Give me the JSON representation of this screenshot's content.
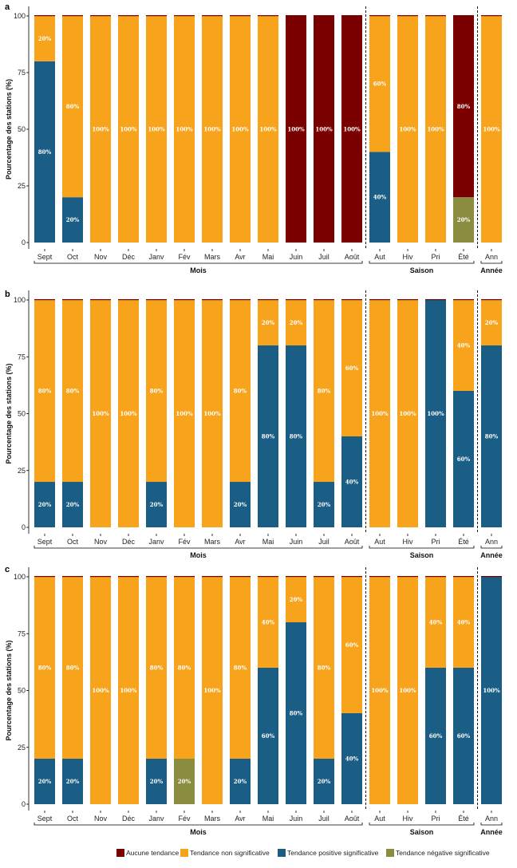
{
  "chart_data": [
    {
      "type": "bar",
      "stacked": true,
      "panel": "a",
      "ylabel": "Pourcentage des stations (%)",
      "yticks": [
        0,
        25,
        50,
        75,
        100
      ],
      "ylim": [
        0,
        100
      ],
      "categories": [
        "Sept",
        "Oct",
        "Nov",
        "Déc",
        "Janv",
        "Fév",
        "Mars",
        "Avr",
        "Mai",
        "Juin",
        "Juil",
        "Août",
        "Aut",
        "Hiv",
        "Pri",
        "Été",
        "Ann"
      ],
      "series": [
        {
          "name": "Tendance négative significative",
          "values": [
            0,
            0,
            0,
            0,
            0,
            0,
            0,
            0,
            0,
            0,
            0,
            0,
            0,
            0,
            0,
            20,
            0
          ]
        },
        {
          "name": "Tendance positive significative",
          "values": [
            80,
            20,
            0,
            0,
            0,
            0,
            0,
            0,
            0,
            0,
            0,
            0,
            40,
            0,
            0,
            0,
            0
          ]
        },
        {
          "name": "Tendance non significative",
          "values": [
            20,
            80,
            100,
            100,
            100,
            100,
            100,
            100,
            100,
            0,
            0,
            0,
            60,
            100,
            100,
            0,
            100
          ]
        },
        {
          "name": "Aucune tendance",
          "values": [
            0,
            0,
            0,
            0,
            0,
            0,
            0,
            0,
            0,
            100,
            100,
            100,
            0,
            0,
            0,
            80,
            0
          ]
        }
      ],
      "groups": [
        {
          "label": "Mois",
          "from": 0,
          "to": 11
        },
        {
          "label": "Saison",
          "from": 12,
          "to": 15
        },
        {
          "label": "Année",
          "from": 16,
          "to": 16
        }
      ]
    },
    {
      "type": "bar",
      "stacked": true,
      "panel": "b",
      "ylabel": "Pourcentage des stations (%)",
      "yticks": [
        0,
        25,
        50,
        75,
        100
      ],
      "ylim": [
        0,
        100
      ],
      "categories": [
        "Sept",
        "Oct",
        "Nov",
        "Déc",
        "Janv",
        "Fév",
        "Mars",
        "Avr",
        "Mai",
        "Juin",
        "Juil",
        "Août",
        "Aut",
        "Hiv",
        "Pri",
        "Été",
        "Ann"
      ],
      "series": [
        {
          "name": "Tendance négative significative",
          "values": [
            0,
            0,
            0,
            0,
            0,
            0,
            0,
            0,
            0,
            0,
            0,
            0,
            0,
            0,
            0,
            0,
            0
          ]
        },
        {
          "name": "Tendance positive significative",
          "values": [
            20,
            20,
            0,
            0,
            20,
            0,
            0,
            20,
            80,
            80,
            20,
            40,
            0,
            0,
            100,
            60,
            80
          ]
        },
        {
          "name": "Tendance non significative",
          "values": [
            80,
            80,
            100,
            100,
            80,
            100,
            100,
            80,
            20,
            20,
            80,
            60,
            100,
            100,
            0,
            40,
            20
          ]
        },
        {
          "name": "Aucune tendance",
          "values": [
            0,
            0,
            0,
            0,
            0,
            0,
            0,
            0,
            0,
            0,
            0,
            0,
            0,
            0,
            0,
            0,
            0
          ]
        }
      ],
      "groups": [
        {
          "label": "Mois",
          "from": 0,
          "to": 11
        },
        {
          "label": "Saison",
          "from": 12,
          "to": 15
        },
        {
          "label": "Année",
          "from": 16,
          "to": 16
        }
      ]
    },
    {
      "type": "bar",
      "stacked": true,
      "panel": "c",
      "ylabel": "Pourcentage des stations (%)",
      "yticks": [
        0,
        25,
        50,
        75,
        100
      ],
      "ylim": [
        0,
        100
      ],
      "categories": [
        "Sept",
        "Oct",
        "Nov",
        "Déc",
        "Janv",
        "Fév",
        "Mars",
        "Avr",
        "Mai",
        "Juin",
        "Juil",
        "Août",
        "Aut",
        "Hiv",
        "Pri",
        "Été",
        "Ann"
      ],
      "series": [
        {
          "name": "Tendance négative significative",
          "values": [
            0,
            0,
            0,
            0,
            0,
            20,
            0,
            0,
            0,
            0,
            0,
            0,
            0,
            0,
            0,
            0,
            0
          ]
        },
        {
          "name": "Tendance positive significative",
          "values": [
            20,
            20,
            0,
            0,
            20,
            0,
            0,
            20,
            60,
            80,
            20,
            40,
            0,
            0,
            60,
            60,
            100
          ]
        },
        {
          "name": "Tendance non significative",
          "values": [
            80,
            80,
            100,
            100,
            80,
            80,
            100,
            80,
            40,
            20,
            80,
            60,
            100,
            100,
            40,
            40,
            0
          ]
        },
        {
          "name": "Aucune tendance",
          "values": [
            0,
            0,
            0,
            0,
            0,
            0,
            0,
            0,
            0,
            0,
            0,
            0,
            0,
            0,
            0,
            0,
            0
          ]
        }
      ],
      "groups": [
        {
          "label": "Mois",
          "from": 0,
          "to": 11
        },
        {
          "label": "Saison",
          "from": 12,
          "to": 15
        },
        {
          "label": "Année",
          "from": 16,
          "to": 16
        }
      ]
    }
  ],
  "legend": {
    "placement": "bottom",
    "items": [
      {
        "name": "Aucune tendance",
        "color": "#7a0000"
      },
      {
        "name": "Tendance non significative",
        "color": "#f7a31c"
      },
      {
        "name": "Tendance positive significative",
        "color": "#1b5e85"
      },
      {
        "name": "Tendance négative significative",
        "color": "#8a8c3f"
      }
    ]
  },
  "colors": {
    "Aucune tendance": "#7a0000",
    "Tendance non significative": "#f7a31c",
    "Tendance positive significative": "#1b5e85",
    "Tendance négative significative": "#8a8c3f"
  }
}
